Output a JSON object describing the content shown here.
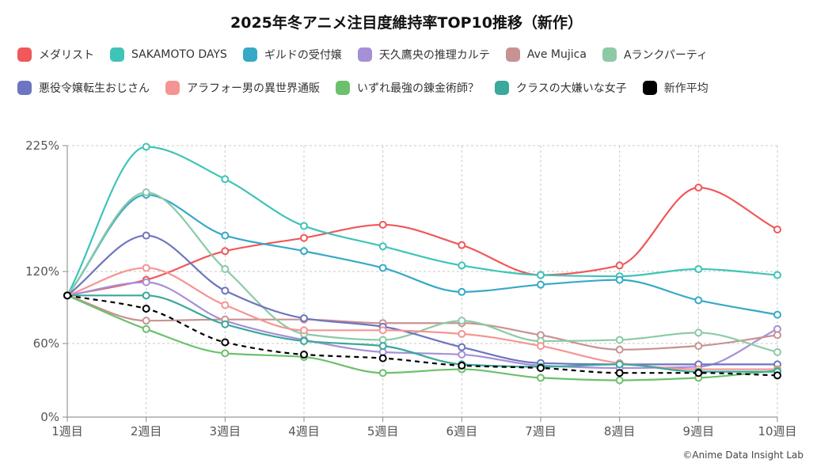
{
  "title": "2025年冬アニメ注目度維持率TOP10推移（新作）",
  "credit": "©Anime Data Insight Lab",
  "chart_data": {
    "type": "line",
    "title": "2025年冬アニメ注目度維持率TOP10推移（新作）",
    "categories": [
      "1週目",
      "2週目",
      "3週目",
      "4週目",
      "5週目",
      "6週目",
      "7週目",
      "8週目",
      "9週目",
      "10週目"
    ],
    "y_ticks": [
      "0%",
      "60%",
      "120%",
      "225%"
    ],
    "y_tick_values": [
      0,
      60,
      120,
      225
    ],
    "ylim": [
      0,
      225
    ],
    "grid": true,
    "legend_position": "top",
    "series": [
      {
        "name": "メダリスト",
        "color": "#f0585a",
        "values": [
          100,
          113,
          137,
          148,
          159,
          142,
          117,
          125,
          190,
          155
        ]
      },
      {
        "name": "SAKAMOTO DAYS",
        "color": "#3fc4b8",
        "values": [
          100,
          224,
          197,
          158,
          141,
          125,
          117,
          116,
          122,
          117
        ]
      },
      {
        "name": "ギルドの受付嬢",
        "color": "#36a9c7",
        "values": [
          100,
          184,
          150,
          137,
          123,
          103,
          109,
          113,
          96,
          84
        ]
      },
      {
        "name": "天久鷹央の推理カルテ",
        "color": "#a590d8",
        "values": [
          100,
          111,
          79,
          63,
          53,
          51,
          42,
          40,
          41,
          72
        ]
      },
      {
        "name": "Ave Mujica",
        "color": "#c99292",
        "values": [
          100,
          79,
          80,
          80,
          77,
          77,
          67,
          55,
          58,
          67
        ]
      },
      {
        "name": "Aランクパーティ",
        "color": "#8ccaa6",
        "values": [
          100,
          186,
          122,
          68,
          63,
          79,
          62,
          63,
          69,
          53
        ]
      },
      {
        "name": "悪役令嬢転生おじさん",
        "color": "#6d74c0",
        "values": [
          100,
          150,
          104,
          81,
          74,
          57,
          44,
          43,
          43,
          43
        ]
      },
      {
        "name": "アラフォー男の異世界通販",
        "color": "#f49593",
        "values": [
          100,
          123,
          92,
          71,
          71,
          68,
          58,
          44,
          39,
          39
        ]
      },
      {
        "name": "いずれ最強の錬金術師？",
        "color": "#6cc06c",
        "values": [
          100,
          72,
          52,
          49,
          36,
          39,
          32,
          30,
          32,
          38
        ]
      },
      {
        "name": "クラスの大嫌いな女子",
        "color": "#3aa89b",
        "values": [
          100,
          100,
          76,
          62,
          58,
          43,
          41,
          43,
          37,
          37
        ]
      },
      {
        "name": "新作平均",
        "color": "#000000",
        "dashed": true,
        "values": [
          100,
          89,
          61,
          51,
          48,
          42,
          40,
          36,
          36,
          34
        ]
      }
    ]
  }
}
